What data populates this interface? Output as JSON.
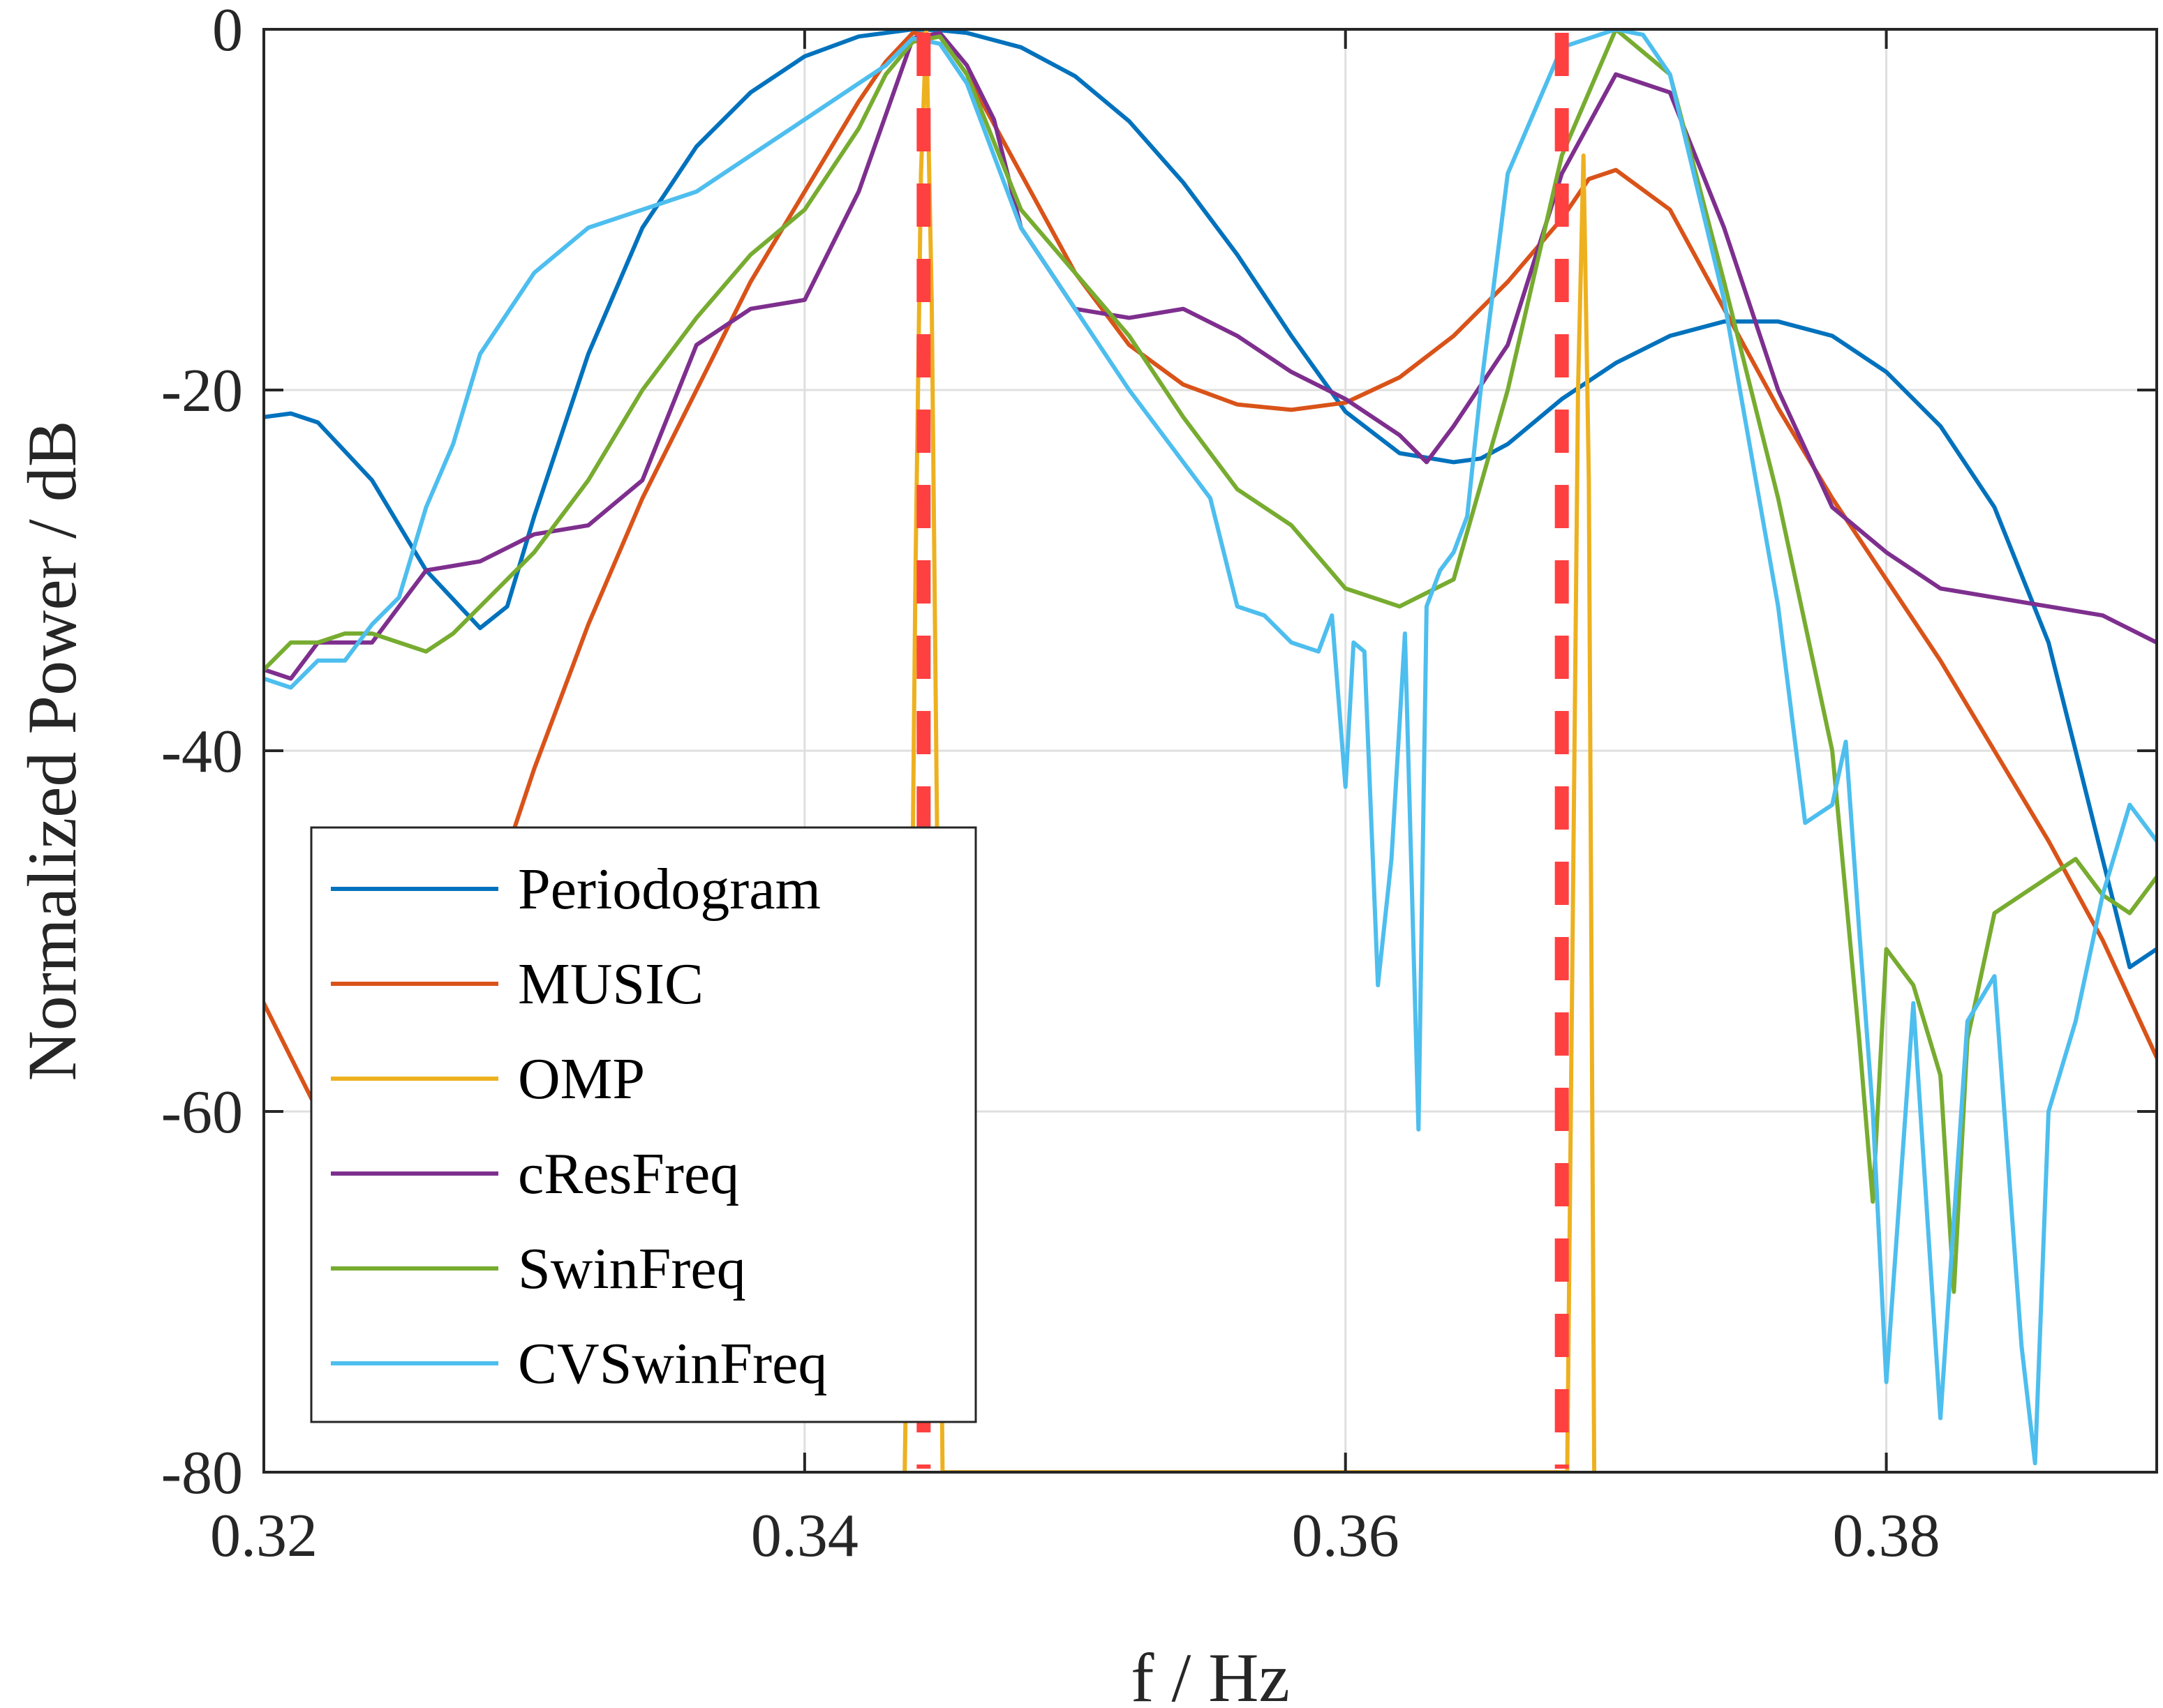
{
  "chart_data": {
    "type": "line",
    "xlabel": "f / Hz",
    "ylabel": "Normalized Power / dB",
    "xlim": [
      0.32,
      0.39
    ],
    "ylim": [
      -80,
      0
    ],
    "xticks": [
      {
        "value": 0.32,
        "label": "0.32"
      },
      {
        "value": 0.34,
        "label": "0.34"
      },
      {
        "value": 0.36,
        "label": "0.36"
      },
      {
        "value": 0.38,
        "label": "0.38"
      }
    ],
    "yticks": [
      {
        "value": 0,
        "label": "0"
      },
      {
        "value": -20,
        "label": "-20"
      },
      {
        "value": -40,
        "label": "-40"
      },
      {
        "value": -60,
        "label": "-60"
      },
      {
        "value": -80,
        "label": "-80"
      }
    ],
    "grid": true,
    "legend_position": "bottom-left",
    "true_frequencies": {
      "x": [
        0.3444,
        0.368
      ],
      "color": "#FF4040",
      "style": "dashed"
    },
    "series": [
      {
        "name": "Periodogram",
        "color": "#0072BD",
        "x": [
          0.32,
          0.321,
          0.322,
          0.324,
          0.326,
          0.328,
          0.329,
          0.33,
          0.332,
          0.334,
          0.336,
          0.338,
          0.34,
          0.342,
          0.344,
          0.345,
          0.346,
          0.348,
          0.35,
          0.352,
          0.354,
          0.356,
          0.358,
          0.36,
          0.362,
          0.364,
          0.365,
          0.366,
          0.368,
          0.37,
          0.372,
          0.374,
          0.376,
          0.378,
          0.38,
          0.382,
          0.384,
          0.386,
          0.387,
          0.388,
          0.389,
          0.39
        ],
        "y": [
          -21.5,
          -21.3,
          -21.8,
          -25,
          -30,
          -33.2,
          -32,
          -27,
          -18,
          -11,
          -6.5,
          -3.5,
          -1.5,
          -0.4,
          0,
          -0.05,
          -0.2,
          -1,
          -2.6,
          -5.1,
          -8.5,
          -12.5,
          -17,
          -21.2,
          -23.5,
          -24,
          -23.8,
          -23,
          -20.5,
          -18.5,
          -17,
          -16.2,
          -16.2,
          -17,
          -19,
          -22,
          -26.5,
          -34,
          -40,
          -46,
          -52,
          -51
        ]
      },
      {
        "name": "MUSIC",
        "color": "#D95319",
        "x": [
          0.32,
          0.321,
          0.322,
          0.324,
          0.326,
          0.328,
          0.33,
          0.332,
          0.334,
          0.336,
          0.338,
          0.34,
          0.342,
          0.343,
          0.344,
          0.345,
          0.346,
          0.348,
          0.35,
          0.352,
          0.354,
          0.356,
          0.358,
          0.36,
          0.362,
          0.364,
          0.366,
          0.368,
          0.369,
          0.37,
          0.372,
          0.374,
          0.376,
          0.378,
          0.38,
          0.382,
          0.384,
          0.386,
          0.388,
          0.39
        ],
        "y": [
          -54,
          -57,
          -60,
          -62,
          -58,
          -50,
          -41,
          -33,
          -26,
          -20,
          -14,
          -9,
          -4,
          -1.8,
          -0.2,
          -0.4,
          -2.5,
          -8,
          -13.5,
          -17.5,
          -19.7,
          -20.8,
          -21.1,
          -20.7,
          -19.3,
          -17,
          -14,
          -10.5,
          -8.3,
          -7.8,
          -10,
          -15.5,
          -21,
          -26,
          -30.5,
          -35,
          -40,
          -45,
          -50.5,
          -57
        ]
      },
      {
        "name": "OMP",
        "color": "#EDB120",
        "x": [
          0.3437,
          0.3439,
          0.3441,
          0.3443,
          0.3445,
          0.3447,
          0.3449,
          0.3451,
          0.3682,
          0.3684,
          0.3686,
          0.3688,
          0.369,
          0.3692
        ],
        "y": [
          -80,
          -60,
          -30,
          -8,
          0,
          -15,
          -45,
          -80,
          -80,
          -50,
          -20,
          -7,
          -25,
          -80
        ]
      },
      {
        "name": "cResFreq",
        "color": "#7E2F8E",
        "x": [
          0.32,
          0.321,
          0.322,
          0.324,
          0.326,
          0.328,
          0.33,
          0.332,
          0.334,
          0.336,
          0.338,
          0.34,
          0.342,
          0.344,
          0.345,
          0.346,
          0.347,
          0.348,
          0.35,
          0.352,
          0.354,
          0.356,
          0.358,
          0.36,
          0.362,
          0.363,
          0.364,
          0.366,
          0.368,
          0.37,
          0.372,
          0.374,
          0.376,
          0.378,
          0.38,
          0.382,
          0.384,
          0.386,
          0.388,
          0.39
        ],
        "y": [
          -35.5,
          -36,
          -34,
          -34,
          -30,
          -29.5,
          -28,
          -27.5,
          -25,
          -17.5,
          -15.5,
          -15,
          -9,
          -0.5,
          -0.2,
          -2,
          -5,
          -11,
          -15.5,
          -16,
          -15.5,
          -17,
          -19,
          -20.5,
          -22.5,
          -24,
          -22,
          -17.5,
          -8,
          -2.5,
          -3.5,
          -11,
          -20,
          -26.5,
          -29,
          -31,
          -31.5,
          -32,
          -32.5,
          -34
        ]
      },
      {
        "name": "SwinFreq",
        "color": "#77AC30",
        "x": [
          0.32,
          0.321,
          0.322,
          0.323,
          0.324,
          0.325,
          0.326,
          0.327,
          0.328,
          0.33,
          0.332,
          0.334,
          0.336,
          0.338,
          0.34,
          0.342,
          0.343,
          0.344,
          0.345,
          0.346,
          0.348,
          0.35,
          0.352,
          0.354,
          0.356,
          0.358,
          0.36,
          0.362,
          0.364,
          0.366,
          0.368,
          0.37,
          0.372,
          0.374,
          0.376,
          0.378,
          0.379,
          0.3795,
          0.38,
          0.381,
          0.382,
          0.3825,
          0.383,
          0.384,
          0.386,
          0.387,
          0.388,
          0.389,
          0.39
        ],
        "y": [
          -35.5,
          -34,
          -34,
          -33.5,
          -33.5,
          -34,
          -34.5,
          -33.5,
          -32,
          -29,
          -25,
          -20,
          -16,
          -12.5,
          -10,
          -5.5,
          -2.5,
          -0.7,
          -0.4,
          -2.5,
          -10,
          -13.5,
          -17,
          -21.5,
          -25.5,
          -27.5,
          -31,
          -32,
          -30.5,
          -20,
          -7,
          0,
          -2.5,
          -14,
          -26,
          -40,
          -56,
          -65,
          -51,
          -53,
          -58,
          -70,
          -56,
          -49,
          -47,
          -46,
          -48,
          -49,
          -47
        ]
      },
      {
        "name": "CVSwinFreq",
        "color": "#4DBEEE",
        "x": [
          0.32,
          0.321,
          0.322,
          0.323,
          0.324,
          0.325,
          0.326,
          0.327,
          0.328,
          0.33,
          0.332,
          0.334,
          0.336,
          0.338,
          0.34,
          0.342,
          0.343,
          0.344,
          0.345,
          0.346,
          0.348,
          0.35,
          0.352,
          0.354,
          0.355,
          0.356,
          0.357,
          0.358,
          0.359,
          0.3595,
          0.36,
          0.3603,
          0.3607,
          0.3612,
          0.3617,
          0.3622,
          0.3627,
          0.363,
          0.3635,
          0.364,
          0.3645,
          0.365,
          0.366,
          0.368,
          0.37,
          0.371,
          0.372,
          0.374,
          0.376,
          0.377,
          0.378,
          0.3785,
          0.379,
          0.3795,
          0.38,
          0.381,
          0.382,
          0.383,
          0.384,
          0.385,
          0.3855,
          0.386,
          0.387,
          0.388,
          0.389,
          0.39
        ],
        "y": [
          -36,
          -36.5,
          -35,
          -35,
          -33,
          -31.5,
          -26.5,
          -23,
          -18,
          -13.5,
          -11,
          -10,
          -9,
          -7,
          -5,
          -3,
          -2,
          -0.5,
          -0.8,
          -3,
          -11,
          -15.5,
          -20,
          -24,
          -26,
          -32,
          -32.5,
          -34,
          -34.5,
          -32.5,
          -42,
          -34,
          -34.5,
          -53,
          -46,
          -33.5,
          -61,
          -32,
          -30,
          -29,
          -27,
          -20,
          -8,
          -1,
          0,
          -0.3,
          -2.5,
          -15,
          -32,
          -44,
          -43,
          -39.5,
          -50,
          -60,
          -75,
          -54,
          -77,
          -55,
          -52.5,
          -73,
          -79.5,
          -60,
          -55,
          -48,
          -43,
          -45
        ]
      }
    ]
  }
}
